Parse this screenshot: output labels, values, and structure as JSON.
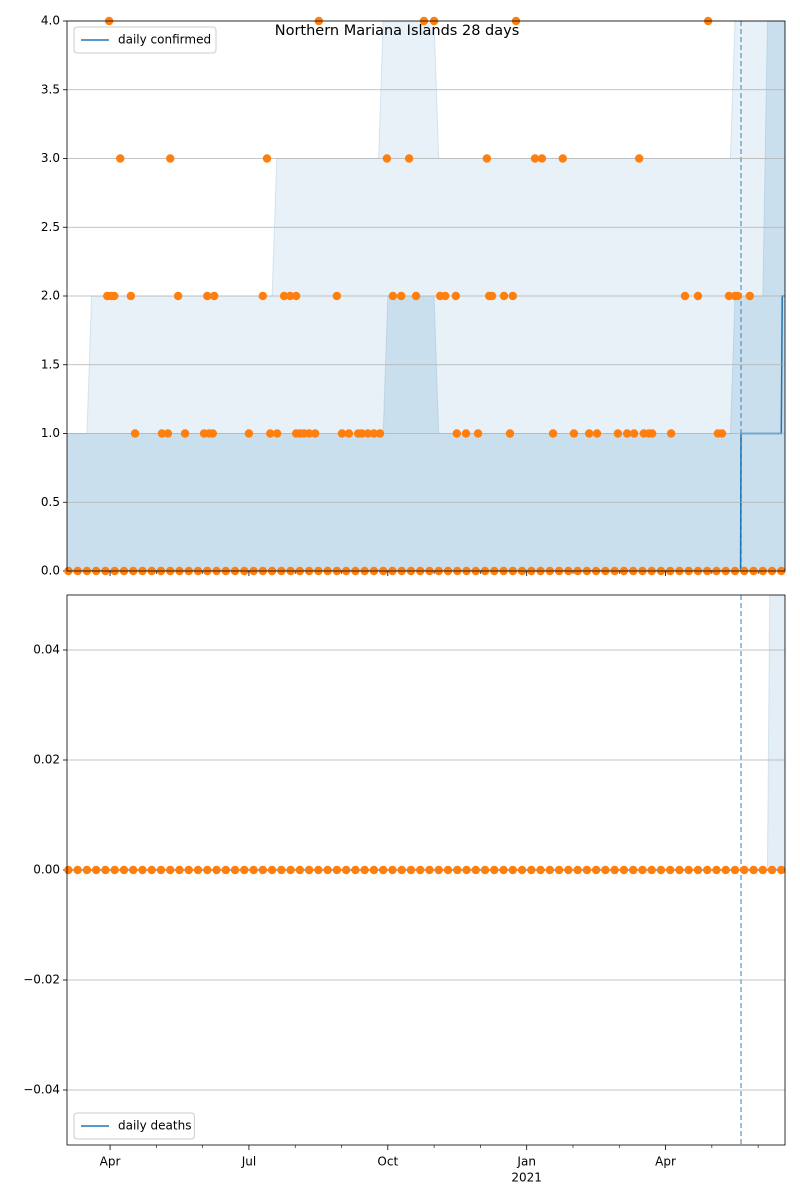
{
  "chart_data": [
    {
      "type": "line",
      "title": "Northern Mariana Islands 28 days",
      "xlim": [
        -0.93,
        14.58
      ],
      "xticks": [
        0,
        3,
        6,
        9,
        12
      ],
      "xminor": [
        1,
        2,
        4,
        5,
        7,
        8,
        10,
        11,
        13,
        14
      ],
      "ylim": [
        0,
        4
      ],
      "yticks": [
        {
          "value": 0,
          "label": "0.0"
        },
        0.5,
        {
          "value": 1,
          "label": "1.0"
        },
        1.5,
        {
          "value": 2,
          "label": "2.0"
        },
        2.5,
        {
          "value": 3,
          "label": "3.0"
        },
        3.5,
        {
          "value": 4,
          "label": "4.0"
        }
      ],
      "grid": true,
      "legend": "upper left",
      "vline": 13.63,
      "bands": [
        {
          "color": "#1f77b4",
          "opacity": 0.1,
          "x": [
            -0.93,
            -0.5,
            -0.4,
            3.5,
            3.6,
            5.8,
            5.9,
            7.0,
            7.1,
            12.5,
            12.6,
            13.4,
            13.5,
            14.58
          ],
          "upper": [
            1,
            1,
            2,
            2,
            3,
            3,
            4,
            4,
            3,
            3,
            3,
            3,
            4,
            4
          ],
          "lower": [
            0,
            0,
            0,
            0,
            0,
            0,
            0,
            0,
            0,
            0,
            0,
            0,
            0,
            0
          ]
        },
        {
          "color": "#1f77b4",
          "opacity": 0.15,
          "x": [
            -0.93,
            3.5,
            3.6,
            5.9,
            6.0,
            7.0,
            7.1,
            13.4,
            13.5,
            14.1,
            14.2,
            14.58
          ],
          "upper": [
            1,
            1,
            1,
            1,
            2,
            2,
            1,
            1,
            2,
            2,
            4,
            4
          ],
          "lower": [
            0,
            0,
            0,
            0,
            0,
            0,
            0,
            0,
            0,
            0,
            0,
            0
          ]
        }
      ],
      "series": [
        {
          "name": "daily confirmed",
          "color": "#1f77b4",
          "x": [
            -0.93,
            13.62,
            13.63,
            14.5,
            14.52,
            14.58
          ],
          "values": [
            0,
            0,
            1,
            1,
            2,
            2
          ]
        }
      ],
      "scatter": [
        {
          "color": "#ff7f0e",
          "x": [
            -0.02,
            4.51,
            6.78,
            7.0,
            8.77,
            12.92,
            0.22,
            1.3,
            3.39,
            5.98,
            6.46,
            8.14,
            9.18,
            9.33,
            9.78,
            11.43,
            -0.06,
            0.02,
            0.09,
            0.45,
            1.47,
            2.1,
            2.25,
            3.3,
            3.76,
            3.89,
            4.02,
            4.9,
            6.11,
            6.29,
            6.61,
            7.13,
            7.24,
            7.47,
            8.19,
            8.25,
            8.51,
            8.7,
            12.42,
            12.7,
            13.37,
            13.5,
            13.56,
            13.82,
            0.54,
            1.12,
            1.25,
            1.62,
            2.03,
            2.14,
            2.22,
            3.0,
            3.46,
            3.61,
            4.02,
            4.1,
            4.19,
            4.3,
            4.43,
            5.01,
            5.16,
            5.36,
            5.44,
            5.57,
            5.7,
            5.83,
            7.49,
            7.69,
            7.95,
            8.64,
            9.57,
            10.02,
            10.35,
            10.52,
            10.97,
            11.17,
            11.32,
            11.53,
            11.64,
            11.71,
            12.12,
            13.13,
            13.22
          ],
          "values": [
            4,
            4,
            4,
            4,
            4,
            4,
            3,
            3,
            3,
            3,
            3,
            3,
            3,
            3,
            3,
            3,
            2,
            2,
            2,
            2,
            2,
            2,
            2,
            2,
            2,
            2,
            2,
            2,
            2,
            2,
            2,
            2,
            2,
            2,
            2,
            2,
            2,
            2,
            2,
            2,
            2,
            2,
            2,
            2,
            1,
            1,
            1,
            1,
            1,
            1,
            1,
            1,
            1,
            1,
            1,
            1,
            1,
            1,
            1,
            1,
            1,
            1,
            1,
            1,
            1,
            1,
            1,
            1,
            1,
            1,
            1,
            1,
            1,
            1,
            1,
            1,
            1,
            1,
            1,
            1,
            1,
            1,
            1
          ]
        },
        {
          "color": "#ff7f0e",
          "x": [
            -0.9,
            -0.7,
            -0.5,
            -0.3,
            -0.1,
            0.1,
            0.3,
            0.5,
            0.7,
            0.9,
            1.1,
            1.3,
            1.5,
            1.7,
            1.9,
            2.1,
            2.3,
            2.5,
            2.7,
            2.9,
            3.1,
            3.3,
            3.5,
            3.7,
            3.9,
            4.1,
            4.3,
            4.5,
            4.7,
            4.9,
            5.1,
            5.3,
            5.5,
            5.7,
            5.9,
            6.1,
            6.3,
            6.5,
            6.7,
            6.9,
            7.1,
            7.3,
            7.5,
            7.7,
            7.9,
            8.1,
            8.3,
            8.5,
            8.7,
            8.9,
            9.1,
            9.3,
            9.5,
            9.7,
            9.9,
            10.1,
            10.3,
            10.5,
            10.7,
            10.9,
            11.1,
            11.3,
            11.5,
            11.7,
            11.9,
            12.1,
            12.3,
            12.5,
            12.7,
            12.9,
            13.1,
            13.3,
            13.5,
            13.7,
            13.9,
            14.1,
            14.3,
            14.5
          ],
          "values": [
            0,
            0,
            0,
            0,
            0,
            0,
            0,
            0,
            0,
            0,
            0,
            0,
            0,
            0,
            0,
            0,
            0,
            0,
            0,
            0,
            0,
            0,
            0,
            0,
            0,
            0,
            0,
            0,
            0,
            0,
            0,
            0,
            0,
            0,
            0,
            0,
            0,
            0,
            0,
            0,
            0,
            0,
            0,
            0,
            0,
            0,
            0,
            0,
            0,
            0,
            0,
            0,
            0,
            0,
            0,
            0,
            0,
            0,
            0,
            0,
            0,
            0,
            0,
            0,
            0,
            0,
            0,
            0,
            0,
            0,
            0,
            0,
            0,
            0,
            0,
            0,
            0,
            0
          ]
        }
      ]
    },
    {
      "type": "line",
      "xlim": [
        -0.93,
        14.58
      ],
      "xticks": [
        {
          "value": 0,
          "label": "Apr"
        },
        {
          "value": 3,
          "label": "Jul"
        },
        {
          "value": 6,
          "label": "Oct"
        },
        {
          "value": 9,
          "label": "Jan"
        },
        {
          "value": 12,
          "label": "Apr"
        }
      ],
      "xminor": [
        1,
        2,
        4,
        5,
        7,
        8,
        10,
        11,
        13,
        14
      ],
      "year_label": {
        "value": 9,
        "label": "2021"
      },
      "ylim": [
        -0.05,
        0.05
      ],
      "yticks": [
        {
          "value": -0.04,
          "label": "−0.04"
        },
        {
          "value": -0.02,
          "label": "−0.02"
        },
        {
          "value": 0,
          "label": "0.00"
        },
        0.02,
        0.04
      ],
      "grid": true,
      "legend": "lower left",
      "vline": 13.63,
      "bands": [
        {
          "color": "#1f77b4",
          "opacity": 0.12,
          "x": [
            -0.93,
            14.2,
            14.25,
            14.58
          ],
          "upper": [
            0,
            0,
            0.05,
            0.05
          ],
          "lower": [
            0,
            0,
            0,
            0
          ]
        }
      ],
      "series": [
        {
          "name": "daily deaths",
          "color": "#1f77b4",
          "x": [
            -0.93,
            14.58
          ],
          "values": [
            0,
            0
          ]
        }
      ],
      "scatter": [
        {
          "color": "#ff7f0e",
          "x": [
            -0.9,
            -0.7,
            -0.5,
            -0.3,
            -0.1,
            0.1,
            0.3,
            0.5,
            0.7,
            0.9,
            1.1,
            1.3,
            1.5,
            1.7,
            1.9,
            2.1,
            2.3,
            2.5,
            2.7,
            2.9,
            3.1,
            3.3,
            3.5,
            3.7,
            3.9,
            4.1,
            4.3,
            4.5,
            4.7,
            4.9,
            5.1,
            5.3,
            5.5,
            5.7,
            5.9,
            6.1,
            6.3,
            6.5,
            6.7,
            6.9,
            7.1,
            7.3,
            7.5,
            7.7,
            7.9,
            8.1,
            8.3,
            8.5,
            8.7,
            8.9,
            9.1,
            9.3,
            9.5,
            9.7,
            9.9,
            10.1,
            10.3,
            10.5,
            10.7,
            10.9,
            11.1,
            11.3,
            11.5,
            11.7,
            11.9,
            12.1,
            12.3,
            12.5,
            12.7,
            12.9,
            13.1,
            13.3,
            13.5,
            13.7,
            13.9,
            14.1,
            14.3,
            14.5
          ],
          "values": [
            0,
            0,
            0,
            0,
            0,
            0,
            0,
            0,
            0,
            0,
            0,
            0,
            0,
            0,
            0,
            0,
            0,
            0,
            0,
            0,
            0,
            0,
            0,
            0,
            0,
            0,
            0,
            0,
            0,
            0,
            0,
            0,
            0,
            0,
            0,
            0,
            0,
            0,
            0,
            0,
            0,
            0,
            0,
            0,
            0,
            0,
            0,
            0,
            0,
            0,
            0,
            0,
            0,
            0,
            0,
            0,
            0,
            0,
            0,
            0,
            0,
            0,
            0,
            0,
            0,
            0,
            0,
            0,
            0,
            0,
            0,
            0,
            0,
            0,
            0,
            0,
            0,
            0
          ]
        }
      ]
    }
  ]
}
